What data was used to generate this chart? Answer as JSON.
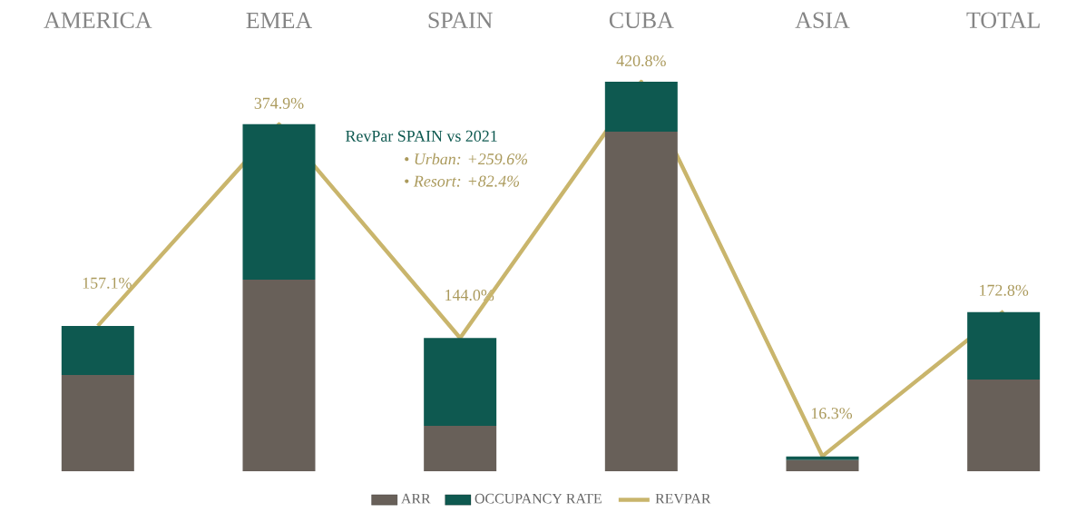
{
  "chart_data": {
    "type": "bar",
    "stacked": true,
    "tick_labels": "x",
    "legend": "bottom",
    "categories": [
      "AMERICA",
      "EMEA",
      "SPAIN",
      "CUBA",
      "ASIA",
      "TOTAL"
    ],
    "series": [
      {
        "name": "ARR",
        "color": "#686059",
        "values": [
          104,
          207,
          49,
          367,
          12,
          99
        ]
      },
      {
        "name": "OCCUPANCY RATE",
        "color": "#0e5950",
        "values": [
          53,
          168,
          95,
          54,
          4,
          73
        ]
      },
      {
        "name": "REVPAR",
        "type": "line",
        "color": "#c9b56c",
        "values": [
          157.1,
          374.9,
          144.0,
          420.8,
          16.3,
          172.8
        ],
        "value_labels": [
          "157.1%",
          "374.9%",
          "144.0%",
          "420.8%",
          "16.3%",
          "172.8%"
        ]
      }
    ],
    "annotations": [
      "RevPar SPAIN vs 2021",
      "•  *Urban: +259.6%*",
      "•  *Resort: +82.4%*"
    ]
  }
}
